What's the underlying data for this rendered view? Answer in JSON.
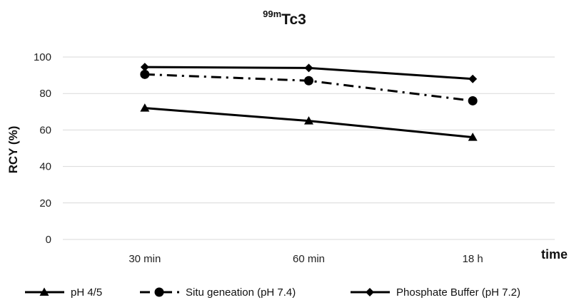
{
  "chart_data": {
    "type": "line",
    "title_sup": "99m",
    "title_main": "Tc3",
    "categories": [
      "30 min",
      "60 min",
      "18 h"
    ],
    "xlabel": "time",
    "ylabel": "RCY (%)",
    "ylim": [
      0,
      100
    ],
    "yticks": [
      0,
      20,
      40,
      60,
      80,
      100
    ],
    "grid": true,
    "legend_position": "bottom",
    "series": [
      {
        "name": "pH 4/5",
        "marker": "triangle",
        "dash": "solid",
        "color": "#000000",
        "values": [
          72,
          65,
          56
        ]
      },
      {
        "name": "Situ geneation (pH 7.4)",
        "marker": "circle",
        "dash": "dash-dot",
        "color": "#000000",
        "values": [
          90.5,
          87,
          76
        ]
      },
      {
        "name": "Phosphate Buffer (pH 7.2)",
        "marker": "diamond",
        "dash": "solid",
        "color": "#000000",
        "values": [
          94.5,
          94,
          88
        ]
      }
    ]
  }
}
